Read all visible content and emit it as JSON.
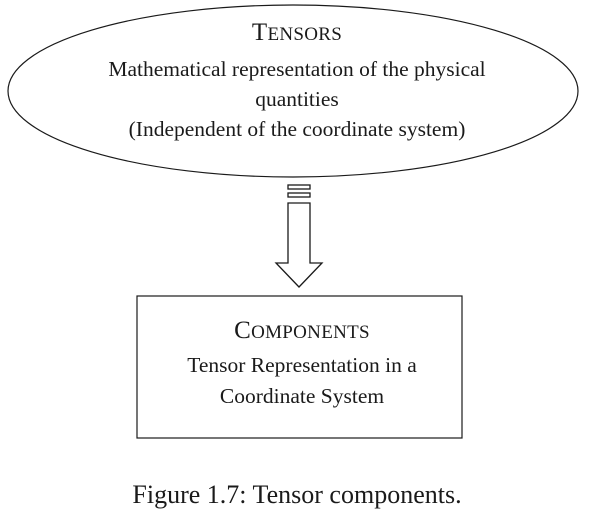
{
  "tensors": {
    "title": "Tensors",
    "lines": [
      "Mathematical representation of the physical",
      "quantities",
      "(Independent of the coordinate system)"
    ]
  },
  "components": {
    "title": "Components",
    "lines": [
      "Tensor Representation in a",
      "Coordinate System"
    ]
  },
  "caption": "Figure 1.7: Tensor components."
}
